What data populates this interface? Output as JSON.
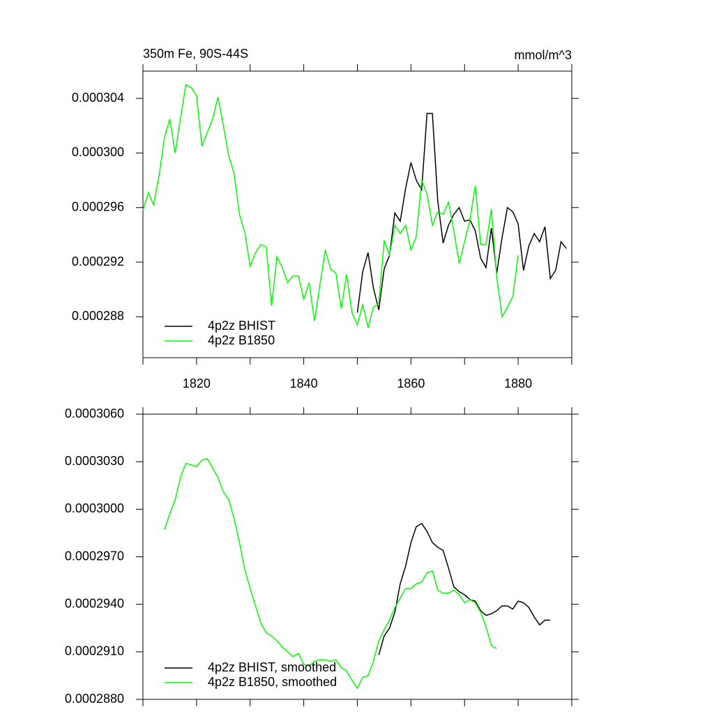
{
  "chart_data": [
    {
      "type": "line",
      "left_title": "350m Fe, 90S-44S",
      "right_title": "mmol/m^3",
      "x": [
        1810,
        1811,
        1812,
        1813,
        1814,
        1815,
        1816,
        1817,
        1818,
        1819,
        1820,
        1821,
        1822,
        1823,
        1824,
        1825,
        1826,
        1827,
        1828,
        1829,
        1830,
        1831,
        1832,
        1833,
        1834,
        1835,
        1836,
        1837,
        1838,
        1839,
        1840,
        1841,
        1842,
        1843,
        1844,
        1845,
        1846,
        1847,
        1848,
        1849,
        1850,
        1851,
        1852,
        1853,
        1854,
        1855,
        1856,
        1857,
        1858,
        1859,
        1860,
        1861,
        1862,
        1863,
        1864,
        1865,
        1866,
        1867,
        1868,
        1869,
        1870,
        1871,
        1872,
        1873,
        1874,
        1875,
        1876,
        1877,
        1878,
        1879,
        1880,
        1881,
        1882,
        1883,
        1884,
        1885,
        1886,
        1887,
        1888,
        1889
      ],
      "series": [
        {
          "name": "4p2z BHIST",
          "color": "#000000",
          "values": [
            null,
            null,
            null,
            null,
            null,
            null,
            null,
            null,
            null,
            null,
            null,
            null,
            null,
            null,
            null,
            null,
            null,
            null,
            null,
            null,
            null,
            null,
            null,
            null,
            null,
            null,
            null,
            null,
            null,
            null,
            null,
            null,
            null,
            null,
            null,
            null,
            null,
            null,
            null,
            null,
            0.0002883,
            0.0002913,
            0.0002927,
            0.0002901,
            0.0002885,
            0.0002915,
            0.0002925,
            0.0002956,
            0.000295,
            0.0002974,
            0.0002993,
            0.000298,
            0.0002973,
            0.0003029,
            0.0003029,
            0.0002965,
            0.0002934,
            0.0002947,
            0.0002955,
            0.000296,
            0.000295,
            0.0002951,
            0.0002943,
            0.0002923,
            0.0002916,
            0.0002945,
            0.0002912,
            0.0002938,
            0.000296,
            0.0002957,
            0.0002948,
            0.0002914,
            0.0002932,
            0.0002941,
            0.0002935,
            0.0002946,
            0.0002908,
            0.0002914,
            0.0002935,
            0.000293
          ]
        },
        {
          "name": "4p2z B1850",
          "color": "#00ff00",
          "values": [
            0.0002958,
            0.0002971,
            0.0002962,
            0.0002983,
            0.0003011,
            0.0003025,
            0.0003,
            0.0003025,
            0.000305,
            0.0003048,
            0.0003042,
            0.0003005,
            0.0003015,
            0.0003025,
            0.0003041,
            0.000302,
            0.0002998,
            0.0002985,
            0.0002955,
            0.0002942,
            0.0002917,
            0.0002927,
            0.0002933,
            0.0002931,
            0.0002888,
            0.0002924,
            0.0002916,
            0.0002905,
            0.000291,
            0.000291,
            0.0002893,
            0.0002905,
            0.0002877,
            0.0002903,
            0.0002929,
            0.0002915,
            0.0002912,
            0.0002886,
            0.0002911,
            0.0002883,
            0.0002874,
            0.0002889,
            0.0002872,
            0.0002887,
            0.000289,
            0.0002936,
            0.0002925,
            0.0002947,
            0.0002941,
            0.0002947,
            0.0002929,
            0.0002939,
            0.000298,
            0.000297,
            0.0002947,
            0.0002957,
            0.0002955,
            0.0002964,
            0.0002943,
            0.0002919,
            0.0002935,
            0.0002951,
            0.0002976,
            0.0002933,
            0.0002933,
            0.0002959,
            0.0002909,
            0.000288,
            0.0002887,
            0.0002895,
            0.0002925,
            null,
            null,
            null,
            null,
            null,
            null,
            null,
            null,
            null
          ]
        }
      ],
      "xlim": [
        1810,
        1890
      ],
      "xticks": [
        1820,
        1840,
        1860,
        1880
      ],
      "xminorticks": [
        1810,
        1830,
        1850,
        1870,
        1890
      ],
      "ylim": [
        0.000285,
        0.000306
      ],
      "yticks": [
        0.000288,
        0.000292,
        0.000296,
        {
          "value": 0.0003,
          "label": "0.000300"
        },
        0.000304
      ],
      "legend": "lower left"
    },
    {
      "type": "line",
      "x": [
        1810,
        1811,
        1812,
        1813,
        1814,
        1815,
        1816,
        1817,
        1818,
        1819,
        1820,
        1821,
        1822,
        1823,
        1824,
        1825,
        1826,
        1827,
        1828,
        1829,
        1830,
        1831,
        1832,
        1833,
        1834,
        1835,
        1836,
        1837,
        1838,
        1839,
        1840,
        1841,
        1842,
        1843,
        1844,
        1845,
        1846,
        1847,
        1848,
        1849,
        1850,
        1851,
        1852,
        1853,
        1854,
        1855,
        1856,
        1857,
        1858,
        1859,
        1860,
        1861,
        1862,
        1863,
        1864,
        1865,
        1866,
        1867,
        1868,
        1869,
        1870,
        1871,
        1872,
        1873,
        1874,
        1875,
        1876,
        1877,
        1878,
        1879,
        1880,
        1881,
        1882,
        1883,
        1884,
        1885,
        1886,
        1887,
        1888,
        1889
      ],
      "series": [
        {
          "name": "4p2z BHIST, smoothed",
          "color": "#000000",
          "values": [
            null,
            null,
            null,
            null,
            null,
            null,
            null,
            null,
            null,
            null,
            null,
            null,
            null,
            null,
            null,
            null,
            null,
            null,
            null,
            null,
            null,
            null,
            null,
            null,
            null,
            null,
            null,
            null,
            null,
            null,
            null,
            null,
            null,
            null,
            null,
            null,
            null,
            null,
            null,
            null,
            null,
            null,
            null,
            null,
            0.0002908,
            0.000292,
            0.0002925,
            0.0002935,
            0.0002953,
            0.0002964,
            0.0002979,
            0.0002989,
            0.0002991,
            0.0002986,
            0.0002979,
            0.0002976,
            0.0002974,
            0.0002963,
            0.0002951,
            0.0002948,
            0.0002946,
            0.0002943,
            0.0002942,
            0.0002936,
            0.0002933,
            0.0002934,
            0.0002936,
            0.0002939,
            0.0002939,
            0.0002937,
            0.0002942,
            0.0002941,
            0.0002938,
            0.0002932,
            0.0002927,
            0.000293,
            0.000293,
            null,
            null,
            null
          ]
        },
        {
          "name": "4p2z B1850, smoothed",
          "color": "#00ff00",
          "values": [
            null,
            null,
            null,
            null,
            0.0002987,
            0.0002997,
            0.0003006,
            0.000302,
            0.0003029,
            0.0003028,
            0.0003027,
            0.0003031,
            0.0003032,
            0.0003026,
            0.000302,
            0.0003011,
            0.0003006,
            0.0002994,
            0.0002979,
            0.0002962,
            0.000295,
            0.0002939,
            0.0002928,
            0.0002922,
            0.000292,
            0.0002917,
            0.0002913,
            0.000291,
            0.0002907,
            0.0002909,
            0.0002902,
            0.0002901,
            0.0002904,
            0.0002905,
            0.0002905,
            0.0002904,
            0.0002905,
            0.00029,
            0.0002898,
            0.0002892,
            0.0002887,
            0.0002894,
            0.0002895,
            0.0002904,
            0.0002917,
            0.0002924,
            0.000293,
            0.0002938,
            0.0002944,
            0.000295,
            0.000295,
            0.0002953,
            0.0002954,
            0.000296,
            0.0002961,
            0.0002949,
            0.0002947,
            0.0002947,
            0.0002949,
            0.0002946,
            0.0002941,
            0.0002943,
            0.0002941,
            0.0002935,
            0.0002926,
            0.0002914,
            0.0002912,
            null,
            null,
            null,
            null,
            null,
            null,
            null,
            null,
            null,
            null,
            null,
            null,
            null
          ]
        }
      ],
      "xlim": [
        1810,
        1890
      ],
      "xtickmarks": [
        1810,
        1820,
        1830,
        1840,
        1850,
        1860,
        1870,
        1880,
        1890
      ],
      "ylim": [
        0.000288,
        0.000306
      ],
      "yticks": [
        {
          "value": 0.000288,
          "label": "0.0002880"
        },
        {
          "value": 0.000291,
          "label": "0.0002910"
        },
        {
          "value": 0.000294,
          "label": "0.0002940"
        },
        {
          "value": 0.000297,
          "label": "0.0002970"
        },
        {
          "value": 0.0003,
          "label": "0.0003000"
        },
        {
          "value": 0.000303,
          "label": "0.0003030"
        },
        {
          "value": 0.000306,
          "label": "0.0003060"
        }
      ],
      "legend": "lower left"
    }
  ]
}
